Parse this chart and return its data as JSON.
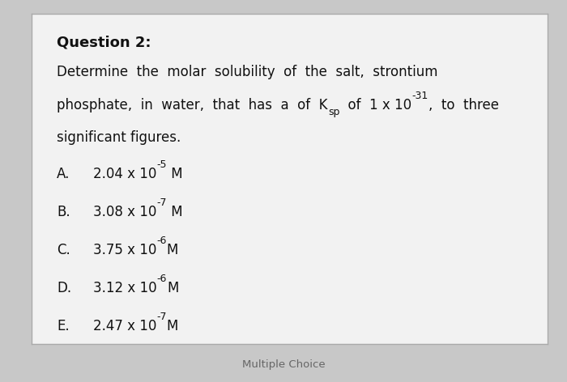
{
  "background_color": "#c8c8c8",
  "card_color": "#f2f2f2",
  "card_edge_color": "#aaaaaa",
  "title": "Question 2:",
  "body_fontsize": 12,
  "title_fontsize": 13,
  "choice_fontsize": 12,
  "footer_fontsize": 9.5,
  "text_color": "#111111",
  "footer_color": "#666666",
  "footer": "Multiple Choice",
  "q_line1": "Determine  the  molar  solubility  of  the  salt,  strontium",
  "q_line2_pre": "phosphate,  in  water,  that  has  a  of  K",
  "q_line2_sub": "sp",
  "q_line2_mid": "  of  1 x 10",
  "q_line2_sup": "-31",
  "q_line2_end": ",  to  three",
  "q_line3": "significant figures.",
  "choices": [
    {
      "label": "A.",
      "main": "2.04 x 10",
      "exp": "-5",
      "unit": " M"
    },
    {
      "label": "B.",
      "main": "3.08 x 10",
      "exp": "-7",
      "unit": " M"
    },
    {
      "label": "C.",
      "main": "3.75 x 10",
      "exp": "-6",
      "unit": "M"
    },
    {
      "label": "D.",
      "main": "3.12 x 10",
      "exp": "-6",
      "unit": "M"
    },
    {
      "label": "E.",
      "main": "2.47 x 10",
      "exp": "-7",
      "unit": "M"
    }
  ]
}
